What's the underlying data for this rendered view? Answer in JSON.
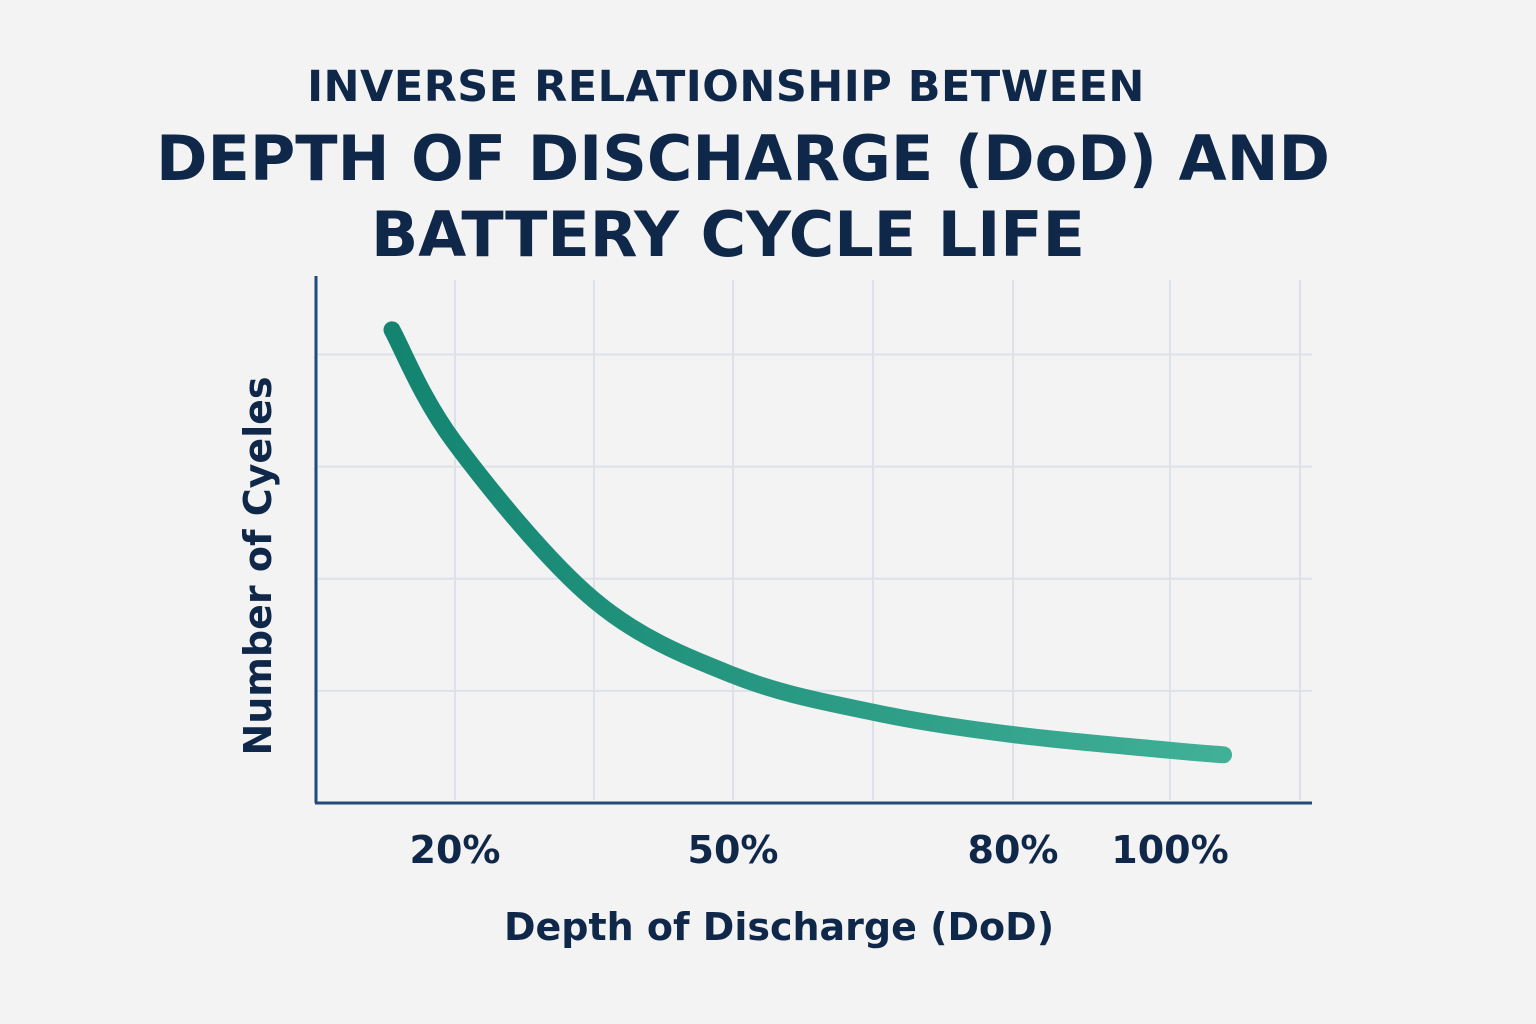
{
  "chart_data": {
    "type": "line",
    "title_lines": [
      "INVERSE RELATIONSHIP BETWEEN",
      "DEPTH OF DISCHARGE (DoD) AND",
      "BATTERY CYCLE LIFE"
    ],
    "xlabel": "Depth of Discharge (DoD)",
    "ylabel": "Number of Cyeles",
    "x_ticks": [
      {
        "value": 20,
        "label": "20%"
      },
      {
        "value": 50,
        "label": "50%"
      },
      {
        "value": 80,
        "label": "80%"
      },
      {
        "value": 100,
        "label": "100%"
      }
    ],
    "x_gridlines": [
      20,
      35,
      50,
      65,
      80,
      100,
      117
    ],
    "y_gridlines": [
      1,
      2,
      3,
      4
    ],
    "xlim": [
      5,
      117
    ],
    "ylim": [
      0,
      4.7
    ],
    "grid": true,
    "series": [
      {
        "x": [
          13.2,
          20,
          35,
          50,
          65,
          80,
          100,
          107
        ],
        "y": [
          4.22,
          3.21,
          1.81,
          1.14,
          0.81,
          0.61,
          0.47,
          0.43
        ]
      }
    ],
    "colors": {
      "text": "#0f2748",
      "axis": "#1f4a7a",
      "grid": "#dde1e8",
      "line_start": "#138470",
      "line_end": "#40b097"
    }
  }
}
